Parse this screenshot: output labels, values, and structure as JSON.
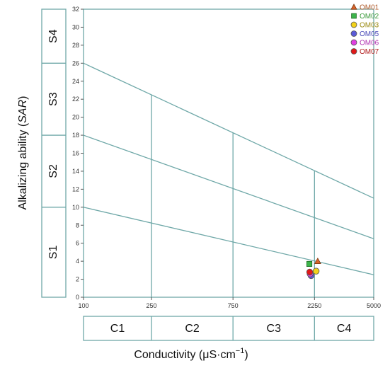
{
  "chart_data": {
    "type": "scatter",
    "title": "",
    "xlabel": "Conductivity (μS·cm",
    "xlabel_sup": "−1",
    "xlabel_close": ")",
    "ylabel": "Alkalizing ability (",
    "ylabel_em": "SAR",
    "ylabel_close": ")",
    "ylim": [
      0,
      32
    ],
    "x_scale": "log",
    "xlim": [
      100,
      5000
    ],
    "x_ticks": [
      {
        "value": 100,
        "label": "100"
      },
      {
        "value": 250,
        "label": "250"
      },
      {
        "value": 750,
        "label": "750"
      },
      {
        "value": 2250,
        "label": "2250"
      },
      {
        "value": 5000,
        "label": "5000"
      }
    ],
    "y_ticks": [
      0,
      2,
      4,
      6,
      8,
      10,
      12,
      14,
      16,
      18,
      20,
      22,
      24,
      26,
      28,
      30,
      32
    ],
    "class_lines": [
      {
        "name": "S1/S2",
        "points": [
          [
            100,
            10
          ],
          [
            5000,
            2.5
          ]
        ]
      },
      {
        "name": "S2/S3",
        "points": [
          [
            100,
            18
          ],
          [
            5000,
            6.5
          ]
        ]
      },
      {
        "name": "S3/S4",
        "points": [
          [
            100,
            26
          ],
          [
            5000,
            11
          ]
        ]
      }
    ],
    "vertical_lines": [
      250,
      750,
      2250
    ],
    "sodium_classes": [
      {
        "label": "S1",
        "from": 0,
        "to": 10
      },
      {
        "label": "S2",
        "from": 10,
        "to": 18
      },
      {
        "label": "S3",
        "from": 18,
        "to": 26
      },
      {
        "label": "S4",
        "from": 26,
        "to": 32
      }
    ],
    "salinity_classes": [
      {
        "label": "C1",
        "from": 100,
        "to": 250
      },
      {
        "label": "C2",
        "from": 250,
        "to": 750
      },
      {
        "label": "C3",
        "from": 750,
        "to": 2250
      },
      {
        "label": "C4",
        "from": 2250,
        "to": 5000
      }
    ],
    "series": [
      {
        "name": "OM01",
        "marker": "triangle",
        "color": "#d9632a",
        "text_color": "#b05a2a",
        "x": 2350,
        "y": 4.0
      },
      {
        "name": "OM02",
        "marker": "square",
        "color": "#3cb44b",
        "text_color": "#3a9a3a",
        "x": 2100,
        "y": 3.7
      },
      {
        "name": "OM03",
        "marker": "circle",
        "color": "#f2d21b",
        "text_color": "#9a8a10",
        "x": 2300,
        "y": 2.9
      },
      {
        "name": "OM05",
        "marker": "circle",
        "color": "#5a5ad8",
        "text_color": "#4a4ab8",
        "x": 2150,
        "y": 2.4
      },
      {
        "name": "OM06",
        "marker": "circle",
        "color": "#e040e0",
        "text_color": "#b030b0",
        "x": 2120,
        "y": 2.6
      },
      {
        "name": "OM07",
        "marker": "circle",
        "color": "#e01818",
        "text_color": "#b01818",
        "x": 2110,
        "y": 2.8
      }
    ],
    "line_color": "#6fa8a8",
    "grid": false,
    "legend": "top-right"
  }
}
